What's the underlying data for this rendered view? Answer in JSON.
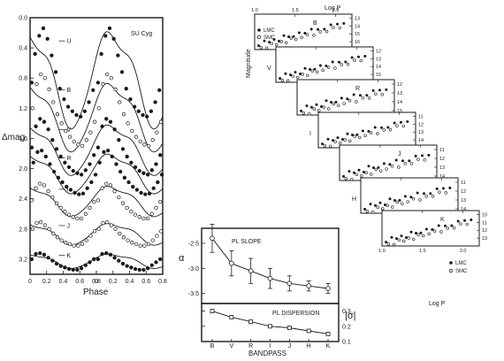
{
  "chart_data": [
    {
      "id": "light-curves",
      "type": "scatter",
      "star_label": "SU Cyg",
      "xlabel": "Phase",
      "ylabel": "Δmag",
      "xlim": [
        0,
        0.8
      ],
      "ylim": [
        3.4,
        0.0
      ],
      "xticks": [
        "0",
        "0.2",
        "0.4",
        "0.6",
        "0.8",
        "0",
        "0.2",
        "0.4",
        "0.6",
        "0.8"
      ],
      "yticks": [
        "0.0",
        "0.4",
        "0.8",
        "1.2",
        "1.6",
        "2.0",
        "2.4",
        "2.8",
        "3.2"
      ],
      "series": [
        {
          "name": "U",
          "marker": "filled",
          "base": 0.78,
          "amp": 1.35,
          "x": [
            0.02,
            0.06,
            0.11,
            0.16,
            0.21,
            0.26,
            0.31,
            0.36,
            0.41,
            0.46,
            0.51,
            0.56,
            0.61,
            0.66,
            0.71,
            0.76
          ],
          "y": [
            0.86,
            0.48,
            0.24,
            0.14,
            0.28,
            0.5,
            0.72,
            0.94,
            1.08,
            1.18,
            1.24,
            1.29,
            1.31,
            1.24,
            1.12,
            0.96
          ]
        },
        {
          "name": "B",
          "marker": "open",
          "base": 1.29,
          "amp": 0.95,
          "x": [
            0.03,
            0.08,
            0.13,
            0.18,
            0.23,
            0.28,
            0.33,
            0.38,
            0.43,
            0.48,
            0.53,
            0.58,
            0.63,
            0.68,
            0.73,
            0.78
          ],
          "y": [
            1.2,
            0.88,
            0.75,
            0.8,
            0.95,
            1.12,
            1.28,
            1.4,
            1.5,
            1.58,
            1.64,
            1.68,
            1.7,
            1.62,
            1.52,
            1.38
          ]
        },
        {
          "name": "V",
          "marker": "filled",
          "base": 1.73,
          "amp": 0.7,
          "x": [
            0.02,
            0.07,
            0.12,
            0.17,
            0.22,
            0.27,
            0.32,
            0.37,
            0.42,
            0.47,
            0.52,
            0.57,
            0.62,
            0.67,
            0.72,
            0.77
          ],
          "y": [
            1.72,
            1.44,
            1.34,
            1.38,
            1.48,
            1.62,
            1.74,
            1.84,
            1.92,
            1.98,
            2.03,
            2.06,
            2.08,
            2.02,
            1.94,
            1.82
          ]
        },
        {
          "name": "R",
          "marker": "filled",
          "base": 2.05,
          "amp": 0.55,
          "x": [
            0.04,
            0.09,
            0.14,
            0.19,
            0.24,
            0.29,
            0.34,
            0.39,
            0.44,
            0.49,
            0.54,
            0.59,
            0.64,
            0.69,
            0.74,
            0.79
          ],
          "y": [
            1.92,
            1.78,
            1.76,
            1.84,
            1.94,
            2.04,
            2.12,
            2.18,
            2.24,
            2.28,
            2.32,
            2.34,
            2.33,
            2.26,
            2.18,
            2.08
          ]
        },
        {
          "name": "I",
          "marker": "open",
          "base": 2.42,
          "amp": 0.42,
          "x": [
            0.02,
            0.07,
            0.12,
            0.17,
            0.22,
            0.27,
            0.32,
            0.37,
            0.42,
            0.47,
            0.52,
            0.57,
            0.62,
            0.67,
            0.72,
            0.77
          ],
          "y": [
            2.42,
            2.26,
            2.2,
            2.22,
            2.3,
            2.38,
            2.46,
            2.52,
            2.57,
            2.61,
            2.64,
            2.66,
            2.66,
            2.6,
            2.52,
            2.44
          ]
        },
        {
          "name": "J",
          "marker": "open",
          "base": 2.86,
          "amp": 0.3,
          "x": [
            0.03,
            0.08,
            0.13,
            0.18,
            0.23,
            0.28,
            0.33,
            0.38,
            0.43,
            0.48,
            0.53,
            0.58,
            0.63,
            0.68,
            0.73,
            0.78
          ],
          "y": [
            2.8,
            2.72,
            2.71,
            2.75,
            2.8,
            2.86,
            2.91,
            2.95,
            2.98,
            3.0,
            3.02,
            3.02,
            3.0,
            2.95,
            2.89,
            2.83
          ]
        },
        {
          "name": "K",
          "marker": "filled",
          "base": 3.22,
          "amp": 0.2,
          "x": [
            0.02,
            0.07,
            0.12,
            0.17,
            0.22,
            0.27,
            0.32,
            0.37,
            0.42,
            0.47,
            0.52,
            0.57,
            0.62,
            0.67,
            0.72,
            0.77
          ],
          "y": [
            3.2,
            3.13,
            3.12,
            3.14,
            3.18,
            3.22,
            3.26,
            3.29,
            3.31,
            3.33,
            3.34,
            3.34,
            3.32,
            3.28,
            3.24,
            3.2
          ]
        }
      ]
    },
    {
      "id": "pl-relations",
      "type": "scatter",
      "xlabel_top": "Log P",
      "xlabel_bottom": "Log P",
      "ylabel": "Magnitude",
      "legend_top": [
        "LMC",
        "SMC"
      ],
      "legend_bottom": [
        "LMC",
        "SMC"
      ],
      "xlim": [
        1.0,
        2.2
      ],
      "xticks": [
        "1.0",
        "1.5",
        "2.0"
      ],
      "panels": [
        {
          "band": "B",
          "yticks": [
            "13",
            "14",
            "15",
            "16",
            "17"
          ],
          "ylim": [
            17,
            12.5
          ]
        },
        {
          "band": "V",
          "yticks": [
            "12",
            "13",
            "14",
            "15",
            "16"
          ],
          "ylim": [
            16,
            11.5
          ]
        },
        {
          "band": "R",
          "yticks": [
            "12",
            "13",
            "14",
            "15"
          ],
          "ylim": [
            15.5,
            11.5
          ]
        },
        {
          "band": "I",
          "yticks": [
            "11",
            "12",
            "13",
            "14",
            "15"
          ],
          "ylim": [
            15,
            10.5
          ]
        },
        {
          "band": "J",
          "yticks": [
            "11",
            "12",
            "13",
            "14"
          ],
          "ylim": [
            14.5,
            10.5
          ]
        },
        {
          "band": "H",
          "yticks": [
            "11",
            "12",
            "13",
            "14"
          ],
          "ylim": [
            14.5,
            10.5
          ]
        },
        {
          "band": "K",
          "yticks": [
            "10",
            "11",
            "12",
            "13"
          ],
          "ylim": [
            14,
            9.5
          ]
        }
      ],
      "lmc": {
        "logP": [
          1.05,
          1.12,
          1.18,
          1.24,
          1.3,
          1.36,
          1.42,
          1.48,
          1.55,
          1.62,
          1.7,
          1.78,
          1.86,
          1.94,
          2.02,
          2.1
        ],
        "mag_offset": [
          0.4,
          -0.3,
          0.2,
          -0.1,
          0.5,
          -0.4,
          0.1,
          0.3,
          -0.2,
          0.2,
          -0.3,
          0.1,
          0.4,
          -0.2,
          0.0,
          0.2
        ]
      },
      "smc": {
        "logP": [
          1.08,
          1.15,
          1.21,
          1.27,
          1.33,
          1.39,
          1.45,
          1.51,
          1.58,
          1.65,
          1.73,
          1.81,
          1.89,
          1.97,
          2.05
        ],
        "mag_offset": [
          0.1,
          0.5,
          -0.2,
          0.3,
          -0.1,
          0.4,
          -0.3,
          0.2,
          0.1,
          -0.2,
          0.3,
          -0.1,
          0.2,
          -0.3,
          0.1
        ]
      }
    },
    {
      "id": "pl-slope",
      "type": "line",
      "title": "PL SLOPE",
      "ylabel": "α",
      "categories": [
        "B",
        "V",
        "R",
        "I",
        "J",
        "H",
        "K"
      ],
      "values": [
        -2.4,
        -2.9,
        -3.05,
        -3.2,
        -3.3,
        -3.35,
        -3.4
      ],
      "errors": [
        0.28,
        0.25,
        0.25,
        0.2,
        0.15,
        0.1,
        0.1
      ],
      "ylim": [
        -2.2,
        -3.7
      ],
      "yticks": [
        "-3.5",
        "-3.0",
        "-2.5"
      ]
    },
    {
      "id": "pl-dispersion",
      "type": "line",
      "title": "PL DISPERSION",
      "ylabel": "|σ|",
      "xlabel": "BANDPASS",
      "categories": [
        "B",
        "V",
        "R",
        "I",
        "J",
        "H",
        "K"
      ],
      "values": [
        0.3,
        0.26,
        0.23,
        0.2,
        0.19,
        0.17,
        0.15
      ],
      "ylim": [
        0.1,
        0.35
      ],
      "yticks": [
        "0.3",
        "0.2",
        "0.1"
      ]
    }
  ]
}
